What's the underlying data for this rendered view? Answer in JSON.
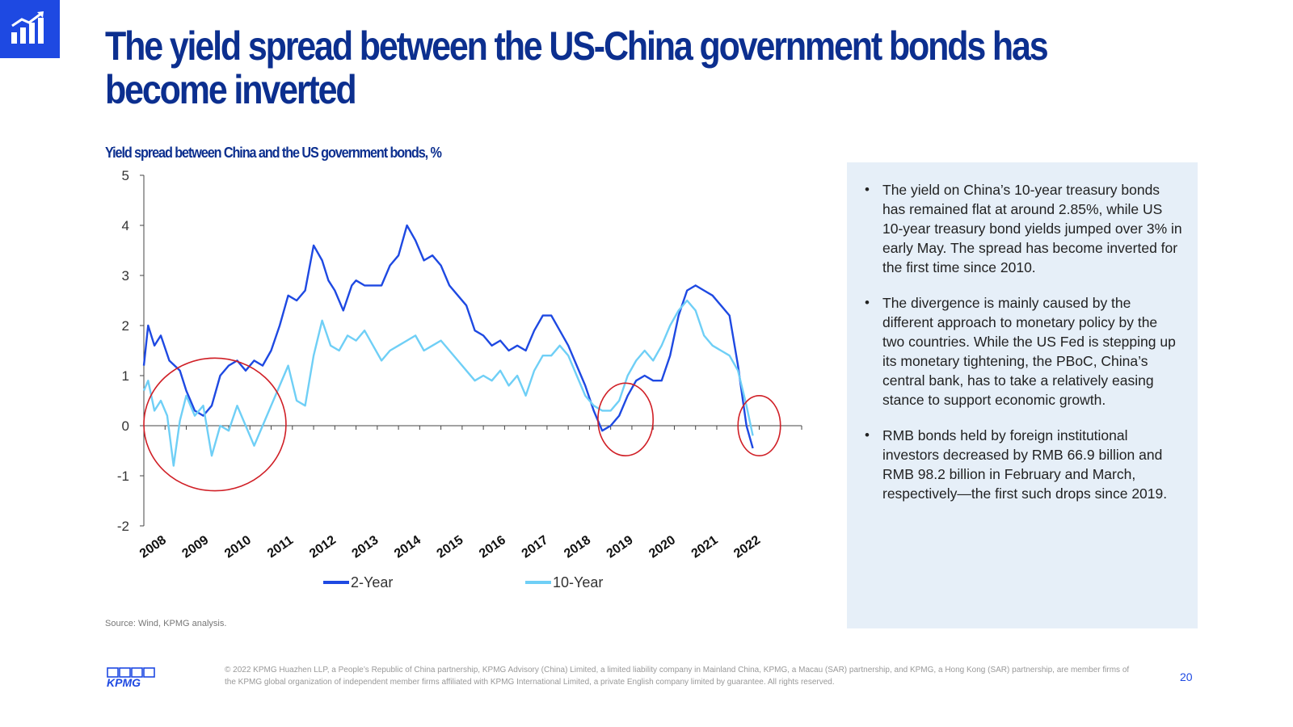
{
  "title_lines": [
    "The yield spread between the US-China government bonds has",
    "become inverted"
  ],
  "chart_title": "Yield spread between China and the US government bonds, %",
  "source": "Source: Wind, KPMG analysis.",
  "bullets": [
    "The yield on China’s 10-year treasury bonds has remained flat at around 2.85%, while US 10-year treasury bond yields jumped over 3% in early May. The spread has become inverted for the first time since 2010.",
    "The divergence is mainly caused by the different approach to monetary policy by the two countries. While the US Fed is stepping up its monetary tightening, the PBoC, China’s central bank, has to take a relatively easing stance to support economic growth.",
    "RMB bonds held by foreign institutional investors decreased by RMB 66.9 billion and RMB 98.2 billion in February and March, respectively—the first such drops since 2019."
  ],
  "footer": "© 2022 KPMG Huazhen LLP, a People’s Republic of China partnership, KPMG Advisory (China) Limited, a limited liability company in Mainland China, KPMG, a Macau (SAR) partnership, and KPMG, a Hong Kong (SAR) partnership, are member firms of the KPMG global organization of independent member firms affiliated with KPMG International Limited, a private English company limited by guarantee. All rights reserved.",
  "page_number": "20",
  "logo_text": "KPMG",
  "colors": {
    "brand_blue": "#1e49e2",
    "title_blue": "#0c2f8f",
    "two_year": "#1e49e2",
    "ten_year": "#6fcff6",
    "circle": "#d01f26",
    "panel_bg": "#e6eff8"
  },
  "icons": {
    "header": "bar-chart-growth-icon",
    "footer": "kpmg-logo"
  },
  "chart_data": {
    "type": "line",
    "title": "Yield spread between China and the US government bonds, %",
    "x_axis_type": "date",
    "xlim": [
      2008.0,
      2023.5
    ],
    "x_tick_labels": [
      "2008",
      "2009",
      "2010",
      "2011",
      "2012",
      "2013",
      "2014",
      "2015",
      "2016",
      "2017",
      "2018",
      "2019",
      "2020",
      "2021",
      "2022"
    ],
    "ylim": [
      -2,
      5
    ],
    "y_ticks": [
      -2,
      -1,
      0,
      1,
      2,
      3,
      4,
      5
    ],
    "grid": false,
    "legend_position": "bottom",
    "series": [
      {
        "name": "2-Year",
        "x": [
          2008.0,
          2008.1,
          2008.25,
          2008.4,
          2008.6,
          2008.85,
          2009.0,
          2009.2,
          2009.4,
          2009.6,
          2009.8,
          2010.0,
          2010.2,
          2010.4,
          2010.6,
          2010.8,
          2011.0,
          2011.2,
          2011.4,
          2011.6,
          2011.8,
          2012.0,
          2012.2,
          2012.35,
          2012.5,
          2012.7,
          2012.9,
          2013.0,
          2013.2,
          2013.4,
          2013.6,
          2013.8,
          2014.0,
          2014.2,
          2014.4,
          2014.6,
          2014.8,
          2015.0,
          2015.2,
          2015.4,
          2015.6,
          2015.8,
          2016.0,
          2016.2,
          2016.4,
          2016.6,
          2016.8,
          2017.0,
          2017.2,
          2017.4,
          2017.6,
          2017.8,
          2018.0,
          2018.2,
          2018.4,
          2018.6,
          2018.8,
          2019.0,
          2019.2,
          2019.4,
          2019.6,
          2019.8,
          2020.0,
          2020.2,
          2020.4,
          2020.6,
          2020.8,
          2021.0,
          2021.2,
          2021.4,
          2021.6,
          2021.8,
          2022.0,
          2022.2,
          2022.35
        ],
        "values": [
          1.2,
          2.0,
          1.6,
          1.8,
          1.3,
          1.1,
          0.7,
          0.3,
          0.2,
          0.4,
          1.0,
          1.2,
          1.3,
          1.1,
          1.3,
          1.2,
          1.5,
          2.0,
          2.6,
          2.5,
          2.7,
          3.6,
          3.3,
          2.9,
          2.7,
          2.3,
          2.8,
          2.9,
          2.8,
          2.8,
          2.8,
          3.2,
          3.4,
          4.0,
          3.7,
          3.3,
          3.4,
          3.2,
          2.8,
          2.6,
          2.4,
          1.9,
          1.8,
          1.6,
          1.7,
          1.5,
          1.6,
          1.5,
          1.9,
          2.2,
          2.2,
          1.9,
          1.6,
          1.2,
          0.8,
          0.3,
          -0.1,
          0.0,
          0.2,
          0.6,
          0.9,
          1.0,
          0.9,
          0.9,
          1.4,
          2.2,
          2.7,
          2.8,
          2.7,
          2.6,
          2.4,
          2.2,
          1.2,
          0.0,
          -0.45
        ]
      },
      {
        "name": "10-Year",
        "x": [
          2008.0,
          2008.1,
          2008.25,
          2008.4,
          2008.55,
          2008.7,
          2008.85,
          2009.0,
          2009.2,
          2009.4,
          2009.6,
          2009.8,
          2010.0,
          2010.2,
          2010.4,
          2010.6,
          2010.8,
          2011.0,
          2011.2,
          2011.4,
          2011.6,
          2011.8,
          2012.0,
          2012.2,
          2012.4,
          2012.6,
          2012.8,
          2013.0,
          2013.2,
          2013.4,
          2013.6,
          2013.8,
          2014.0,
          2014.2,
          2014.4,
          2014.6,
          2014.8,
          2015.0,
          2015.2,
          2015.4,
          2015.6,
          2015.8,
          2016.0,
          2016.2,
          2016.4,
          2016.6,
          2016.8,
          2017.0,
          2017.2,
          2017.4,
          2017.6,
          2017.8,
          2018.0,
          2018.2,
          2018.4,
          2018.6,
          2018.8,
          2019.0,
          2019.2,
          2019.4,
          2019.6,
          2019.8,
          2020.0,
          2020.2,
          2020.4,
          2020.6,
          2020.8,
          2021.0,
          2021.2,
          2021.4,
          2021.6,
          2021.8,
          2022.0,
          2022.2,
          2022.35
        ],
        "values": [
          0.7,
          0.9,
          0.3,
          0.5,
          0.2,
          -0.8,
          0.1,
          0.6,
          0.2,
          0.4,
          -0.6,
          0.0,
          -0.1,
          0.4,
          0.0,
          -0.4,
          0.0,
          0.4,
          0.8,
          1.2,
          0.5,
          0.4,
          1.4,
          2.1,
          1.6,
          1.5,
          1.8,
          1.7,
          1.9,
          1.6,
          1.3,
          1.5,
          1.6,
          1.7,
          1.8,
          1.5,
          1.6,
          1.7,
          1.5,
          1.3,
          1.1,
          0.9,
          1.0,
          0.9,
          1.1,
          0.8,
          1.0,
          0.6,
          1.1,
          1.4,
          1.4,
          1.6,
          1.4,
          1.0,
          0.6,
          0.4,
          0.3,
          0.3,
          0.5,
          1.0,
          1.3,
          1.5,
          1.3,
          1.6,
          2.0,
          2.3,
          2.5,
          2.3,
          1.8,
          1.6,
          1.5,
          1.4,
          1.1,
          0.4,
          -0.2
        ]
      }
    ],
    "annotations": [
      {
        "type": "ellipse",
        "x_range": [
          2008.0,
          2011.35
        ],
        "y_range": [
          -1.3,
          1.35
        ]
      },
      {
        "type": "ellipse",
        "x_range": [
          2018.7,
          2020.0
        ],
        "y_range": [
          -0.6,
          0.85
        ]
      },
      {
        "type": "ellipse",
        "x_range": [
          2022.0,
          2023.0
        ],
        "y_range": [
          -0.6,
          0.6
        ]
      }
    ]
  }
}
